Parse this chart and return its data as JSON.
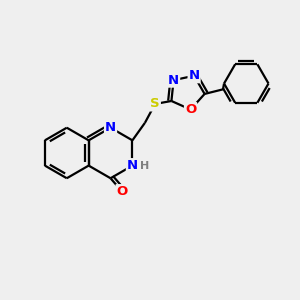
{
  "bg_color": "#efefef",
  "bond_color": "#000000",
  "bond_width": 1.6,
  "atom_colors": {
    "N": "#0000ff",
    "O": "#ff0000",
    "S": "#cccc00",
    "C": "#000000",
    "H": "#808080"
  },
  "font_size": 9.5,
  "fig_size": [
    3.0,
    3.0
  ],
  "dpi": 100
}
